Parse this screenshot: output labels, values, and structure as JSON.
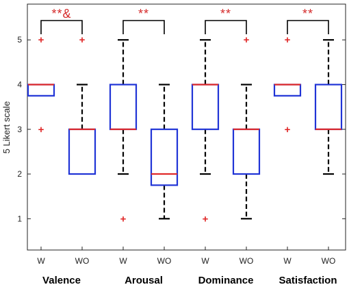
{
  "chart_data": {
    "type": "box",
    "ylabel": "5 Likert scale",
    "ylim": [
      0.3,
      5.8
    ],
    "yticks": [
      1,
      2,
      3,
      4,
      5
    ],
    "colors": {
      "box": "#1f33d6",
      "median": "#e02a2a",
      "whisker": "#000000",
      "outlier": "#e02a2a",
      "significance": "#d42a2a"
    },
    "groups": [
      {
        "name": "Valence",
        "significance": "**&",
        "boxes": [
          {
            "label": "W",
            "q1": 3.75,
            "median": 4,
            "q3": 4,
            "whisker_low": null,
            "whisker_high": null,
            "outliers": [
              5,
              3
            ]
          },
          {
            "label": "WO",
            "q1": 2,
            "median": 3,
            "q3": 3,
            "whisker_low": null,
            "whisker_high": 4,
            "outliers": [
              5
            ]
          }
        ]
      },
      {
        "name": "Arousal",
        "significance": "**",
        "boxes": [
          {
            "label": "W",
            "q1": 3,
            "median": 3,
            "q3": 4,
            "whisker_low": 2,
            "whisker_high": 5,
            "outliers": [
              1
            ]
          },
          {
            "label": "WO",
            "q1": 1.75,
            "median": 2,
            "q3": 3,
            "whisker_low": 1,
            "whisker_high": 4,
            "outliers": []
          }
        ]
      },
      {
        "name": "Dominance",
        "significance": "**",
        "boxes": [
          {
            "label": "W",
            "q1": 3,
            "median": 4,
            "q3": 4,
            "whisker_low": 2,
            "whisker_high": 5,
            "outliers": [
              1
            ]
          },
          {
            "label": "WO",
            "q1": 2,
            "median": 3,
            "q3": 3,
            "whisker_low": 1,
            "whisker_high": 4,
            "outliers": [
              5
            ]
          }
        ]
      },
      {
        "name": "Satisfaction",
        "significance": "**",
        "boxes": [
          {
            "label": "W",
            "q1": 3.75,
            "median": 4,
            "q3": 4,
            "whisker_low": null,
            "whisker_high": null,
            "outliers": [
              5,
              3
            ]
          },
          {
            "label": "WO",
            "q1": 3,
            "median": 3,
            "q3": 4,
            "whisker_low": 2,
            "whisker_high": 5,
            "outliers": []
          }
        ]
      }
    ]
  }
}
